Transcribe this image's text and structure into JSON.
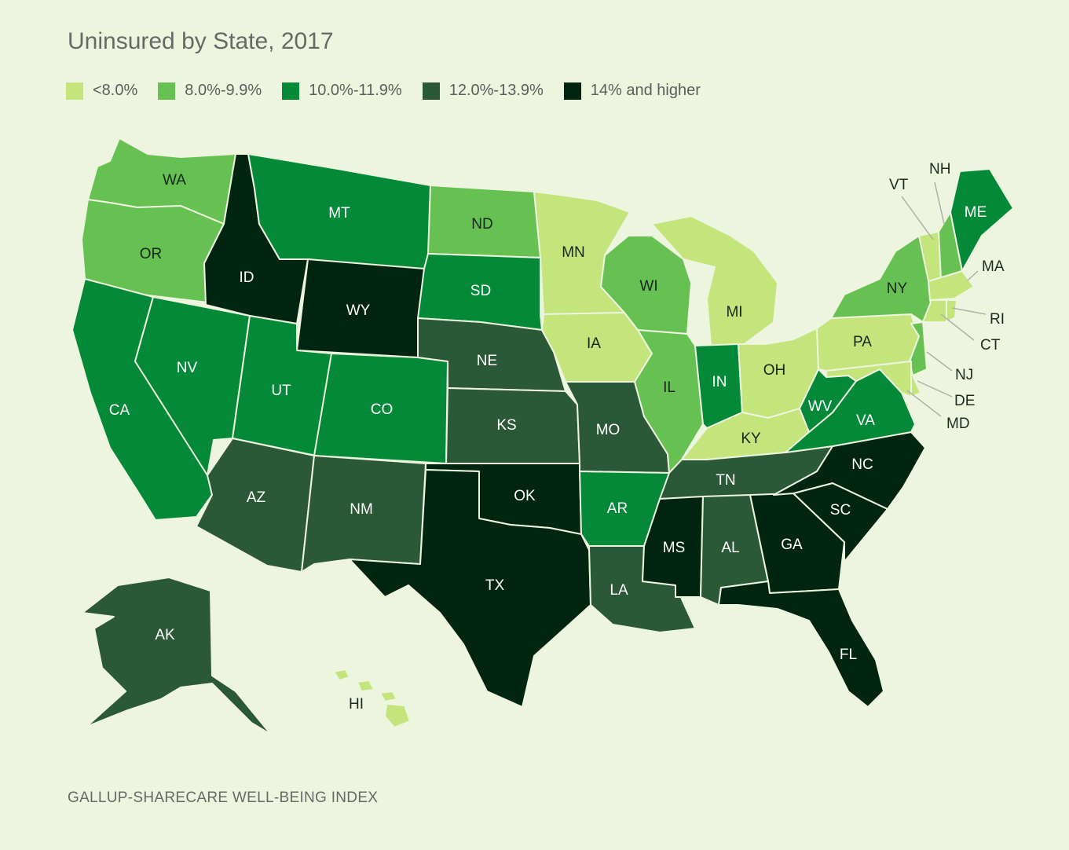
{
  "title": "Uninsured by State, 2017",
  "source": "GALLUP-SHARECARE WELL-BEING INDEX",
  "legend": [
    {
      "label": "<8.0%",
      "color": "#c3e57b"
    },
    {
      "label": "8.0%-9.9%",
      "color": "#66c152"
    },
    {
      "label": "10.0%-11.9%",
      "color": "#048939"
    },
    {
      "label": "12.0%-13.9%",
      "color": "#2b5837"
    },
    {
      "label": "14% and higher",
      "color": "#012510"
    }
  ],
  "states": {
    "WA": {
      "label": "WA",
      "bin": 1
    },
    "OR": {
      "label": "OR",
      "bin": 1
    },
    "CA": {
      "label": "CA",
      "bin": 2
    },
    "ID": {
      "label": "ID",
      "bin": 4
    },
    "NV": {
      "label": "NV",
      "bin": 2
    },
    "MT": {
      "label": "MT",
      "bin": 2
    },
    "WY": {
      "label": "WY",
      "bin": 4
    },
    "UT": {
      "label": "UT",
      "bin": 2
    },
    "CO": {
      "label": "CO",
      "bin": 2
    },
    "AZ": {
      "label": "AZ",
      "bin": 3
    },
    "NM": {
      "label": "NM",
      "bin": 3
    },
    "ND": {
      "label": "ND",
      "bin": 1
    },
    "SD": {
      "label": "SD",
      "bin": 2
    },
    "NE": {
      "label": "NE",
      "bin": 3
    },
    "KS": {
      "label": "KS",
      "bin": 3
    },
    "OK": {
      "label": "OK",
      "bin": 4
    },
    "TX": {
      "label": "TX",
      "bin": 4
    },
    "MN": {
      "label": "MN",
      "bin": 0
    },
    "IA": {
      "label": "IA",
      "bin": 0
    },
    "MO": {
      "label": "MO",
      "bin": 3
    },
    "AR": {
      "label": "AR",
      "bin": 2
    },
    "LA": {
      "label": "LA",
      "bin": 3
    },
    "WI": {
      "label": "WI",
      "bin": 1
    },
    "IL": {
      "label": "IL",
      "bin": 1
    },
    "MI": {
      "label": "MI",
      "bin": 0
    },
    "IN": {
      "label": "IN",
      "bin": 2
    },
    "OH": {
      "label": "OH",
      "bin": 0
    },
    "KY": {
      "label": "KY",
      "bin": 0
    },
    "TN": {
      "label": "TN",
      "bin": 3
    },
    "MS": {
      "label": "MS",
      "bin": 4
    },
    "AL": {
      "label": "AL",
      "bin": 3
    },
    "GA": {
      "label": "GA",
      "bin": 4
    },
    "FL": {
      "label": "FL",
      "bin": 4
    },
    "SC": {
      "label": "SC",
      "bin": 4
    },
    "NC": {
      "label": "NC",
      "bin": 4
    },
    "VA": {
      "label": "VA",
      "bin": 2
    },
    "WV": {
      "label": "WV",
      "bin": 2
    },
    "PA": {
      "label": "PA",
      "bin": 0
    },
    "NY": {
      "label": "NY",
      "bin": 1
    },
    "VT": {
      "label": "VT",
      "bin": 0
    },
    "NH": {
      "label": "NH",
      "bin": 1
    },
    "ME": {
      "label": "ME",
      "bin": 2
    },
    "MA": {
      "label": "MA",
      "bin": 0
    },
    "RI": {
      "label": "RI",
      "bin": 0
    },
    "CT": {
      "label": "CT",
      "bin": 0
    },
    "NJ": {
      "label": "NJ",
      "bin": 1
    },
    "DE": {
      "label": "DE",
      "bin": 0
    },
    "MD": {
      "label": "MD",
      "bin": 0
    },
    "AK": {
      "label": "AK",
      "bin": 3
    },
    "HI": {
      "label": "HI",
      "bin": 0
    }
  }
}
